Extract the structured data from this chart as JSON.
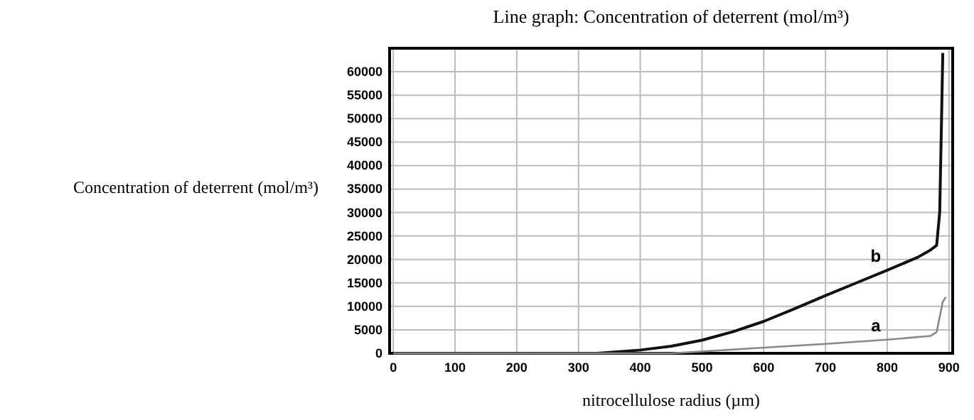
{
  "chart_data": {
    "type": "line",
    "title": "Line graph: Concentration of deterrent (mol/m³)",
    "xlabel": "nitrocellulose radius (µm)",
    "ylabel": "Concentration of deterrent (mol/m³)",
    "series": [
      {
        "name": "b",
        "color": "#111111",
        "x": [
          0,
          100,
          200,
          300,
          330,
          400,
          450,
          500,
          550,
          600,
          650,
          700,
          750,
          800,
          850,
          870,
          880,
          885,
          888,
          890
        ],
        "values": [
          0,
          0,
          0,
          0,
          0,
          700,
          1500,
          2800,
          4600,
          6800,
          9500,
          12300,
          15000,
          17700,
          20500,
          22000,
          23000,
          30000,
          50000,
          64000
        ]
      },
      {
        "name": "a",
        "color": "#888888",
        "x": [
          0,
          100,
          200,
          300,
          400,
          450,
          500,
          600,
          700,
          800,
          870,
          880,
          890,
          895
        ],
        "values": [
          0,
          0,
          0,
          0,
          0,
          0,
          400,
          1200,
          2000,
          2900,
          3700,
          4500,
          11000,
          12000
        ]
      }
    ],
    "xlim": [
      -6,
      906
    ],
    "ylim": [
      0,
      65000
    ],
    "xticks": [
      0,
      100,
      200,
      300,
      400,
      500,
      600,
      700,
      800,
      900
    ],
    "yticks": [
      0,
      5000,
      10000,
      15000,
      20000,
      25000,
      30000,
      35000,
      40000,
      45000,
      50000,
      55000,
      60000
    ],
    "grid": true,
    "line_style": "solid"
  }
}
